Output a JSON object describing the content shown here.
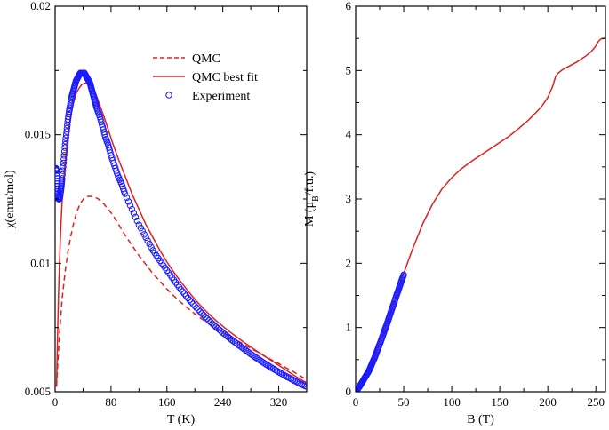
{
  "chart_data": [
    {
      "type": "line",
      "xlabel": "T (K)",
      "ylabel_main": "χ",
      "ylabel_unit": "(emu/mol)",
      "xlim": [
        0,
        360
      ],
      "ylim": [
        0.005,
        0.02
      ],
      "xticks": [
        0,
        80,
        160,
        240,
        320
      ],
      "yticks": [
        0.005,
        0.01,
        0.015,
        0.02
      ],
      "ytick_labels": [
        "0.005",
        "0.01",
        "0.015",
        "0.02"
      ],
      "grid": false,
      "legend_position": "top-right",
      "legend": [
        {
          "label": "QMC",
          "style": "dashed",
          "color": "#e02020"
        },
        {
          "label": "QMC best fit",
          "style": "solid",
          "color": "#e02020"
        },
        {
          "label": "Experiment",
          "style": "circle",
          "color": "#1a1aff"
        }
      ],
      "series": [
        {
          "name": "QMC",
          "style": "dashed",
          "color": "#e02020",
          "x": [
            2,
            4,
            6,
            8,
            10,
            14,
            18,
            22,
            26,
            30,
            34,
            38,
            42,
            46,
            50,
            54,
            58,
            62,
            66,
            70,
            76,
            82,
            90,
            100,
            110,
            120,
            130,
            140,
            150,
            160,
            170,
            180,
            190,
            200,
            210,
            220,
            230,
            240,
            250,
            260,
            270,
            280,
            290,
            300,
            310,
            320,
            330,
            340,
            350,
            360
          ],
          "y": [
            0.0052,
            0.0062,
            0.0071,
            0.0079,
            0.0086,
            0.0096,
            0.0104,
            0.011,
            0.0115,
            0.0119,
            0.0122,
            0.0124,
            0.01255,
            0.0126,
            0.0126,
            0.0126,
            0.01255,
            0.0125,
            0.0124,
            0.0123,
            0.0121,
            0.0119,
            0.01155,
            0.0111,
            0.0107,
            0.0103,
            0.00995,
            0.0096,
            0.0093,
            0.009,
            0.00873,
            0.00848,
            0.00825,
            0.00803,
            0.00783,
            0.00765,
            0.00748,
            0.00731,
            0.00715,
            0.007,
            0.00685,
            0.00669,
            0.00654,
            0.00639,
            0.00624,
            0.0061,
            0.00594,
            0.0058,
            0.00563,
            0.00548
          ]
        },
        {
          "name": "QMC best fit",
          "style": "solid",
          "color": "#e02020",
          "x": [
            2,
            3,
            4,
            5,
            6,
            8,
            10,
            14,
            18,
            22,
            26,
            30,
            34,
            38,
            42,
            46,
            50,
            54,
            58,
            62,
            66,
            70,
            76,
            82,
            90,
            100,
            110,
            120,
            130,
            140,
            150,
            160,
            170,
            180,
            190,
            200,
            210,
            220,
            230,
            240,
            250,
            260,
            270,
            280,
            290,
            300,
            310,
            320,
            330,
            340,
            350,
            360
          ],
          "y": [
            0.0052,
            0.0065,
            0.0078,
            0.0089,
            0.0098,
            0.0113,
            0.0124,
            0.0138,
            0.0149,
            0.0157,
            0.0162,
            0.0166,
            0.0168,
            0.01695,
            0.017,
            0.017,
            0.01695,
            0.0168,
            0.0166,
            0.0163,
            0.016,
            0.0157,
            0.0152,
            0.0147,
            0.0141,
            0.0134,
            0.0127,
            0.0121,
            0.0115,
            0.011,
            0.0105,
            0.01005,
            0.00965,
            0.00928,
            0.00893,
            0.0086,
            0.0083,
            0.00803,
            0.00778,
            0.00755,
            0.00733,
            0.00713,
            0.00693,
            0.00674,
            0.00656,
            0.00638,
            0.00621,
            0.00603,
            0.00585,
            0.00567,
            0.0055,
            0.00535
          ]
        },
        {
          "name": "Experiment",
          "style": "circle",
          "color": "#1a1aff",
          "x": [
            1,
            2,
            3,
            4,
            5,
            6,
            7,
            8,
            9,
            10,
            12,
            14,
            16,
            18,
            20,
            22,
            24,
            26,
            28,
            30,
            32,
            34,
            36,
            38,
            40,
            42,
            44,
            46,
            48,
            50,
            52,
            54,
            56,
            58,
            60,
            64,
            68,
            72,
            76,
            80,
            85,
            90,
            95,
            100,
            110,
            120,
            130,
            140,
            150,
            160,
            170,
            180,
            190,
            200,
            210,
            220,
            230,
            240,
            250,
            260,
            270,
            280,
            290,
            300,
            310,
            320,
            330,
            340,
            350,
            360
          ],
          "y": [
            0.0137,
            0.0136,
            0.0132,
            0.0128,
            0.0125,
            0.0125,
            0.0126,
            0.0128,
            0.013,
            0.0133,
            0.0139,
            0.0145,
            0.015,
            0.0155,
            0.0159,
            0.0162,
            0.0165,
            0.0167,
            0.0169,
            0.0171,
            0.0172,
            0.0173,
            0.0174,
            0.0174,
            0.0174,
            0.0174,
            0.0173,
            0.0172,
            0.0171,
            0.017,
            0.0168,
            0.0166,
            0.0164,
            0.0162,
            0.016,
            0.0157,
            0.0153,
            0.0149,
            0.0146,
            0.0142,
            0.0138,
            0.0134,
            0.0131,
            0.0127,
            0.0121,
            0.0115,
            0.011,
            0.0105,
            0.0101,
            0.00972,
            0.00935,
            0.00898,
            0.00865,
            0.00834,
            0.00805,
            0.00778,
            0.00753,
            0.0073,
            0.00708,
            0.00687,
            0.00667,
            0.00647,
            0.00628,
            0.0061,
            0.00593,
            0.00577,
            0.00561,
            0.00547,
            0.00532,
            0.0052
          ]
        }
      ]
    },
    {
      "type": "line",
      "xlabel": "B (T)",
      "ylabel": "M (μB/f.u.)",
      "xlim": [
        0,
        260
      ],
      "ylim": [
        0,
        6
      ],
      "xticks": [
        0,
        50,
        100,
        150,
        200,
        250
      ],
      "yticks": [
        0,
        1,
        2,
        3,
        4,
        5,
        6
      ],
      "grid": false,
      "series": [
        {
          "name": "QMC",
          "style": "solid",
          "color": "#e02020",
          "x": [
            0,
            5,
            10,
            15,
            20,
            25,
            30,
            35,
            40,
            45,
            50,
            55,
            60,
            70,
            80,
            90,
            100,
            110,
            120,
            130,
            140,
            150,
            160,
            170,
            180,
            190,
            195,
            200,
            205,
            208,
            210,
            215,
            220,
            230,
            240,
            245,
            250,
            252,
            255,
            258,
            260
          ],
          "y": [
            0,
            0.11,
            0.24,
            0.39,
            0.55,
            0.75,
            0.95,
            1.17,
            1.38,
            1.6,
            1.84,
            2.05,
            2.25,
            2.62,
            2.92,
            3.16,
            3.33,
            3.47,
            3.58,
            3.68,
            3.78,
            3.88,
            3.98,
            4.1,
            4.23,
            4.38,
            4.47,
            4.58,
            4.75,
            4.9,
            4.95,
            5.01,
            5.05,
            5.13,
            5.23,
            5.29,
            5.38,
            5.44,
            5.49,
            5.5,
            5.5
          ]
        },
        {
          "name": "Experiment",
          "style": "circle",
          "color": "#1a1aff",
          "x": [
            0,
            2,
            4,
            6,
            8,
            10,
            12,
            14,
            16,
            18,
            20,
            22,
            24,
            26,
            28,
            30,
            32,
            34,
            36,
            38,
            40,
            42,
            44,
            46,
            48,
            50
          ],
          "y": [
            0,
            0.04,
            0.08,
            0.13,
            0.18,
            0.23,
            0.28,
            0.33,
            0.4,
            0.47,
            0.54,
            0.62,
            0.7,
            0.78,
            0.86,
            0.95,
            1.03,
            1.12,
            1.21,
            1.3,
            1.38,
            1.48,
            1.56,
            1.65,
            1.74,
            1.82
          ]
        }
      ]
    }
  ]
}
